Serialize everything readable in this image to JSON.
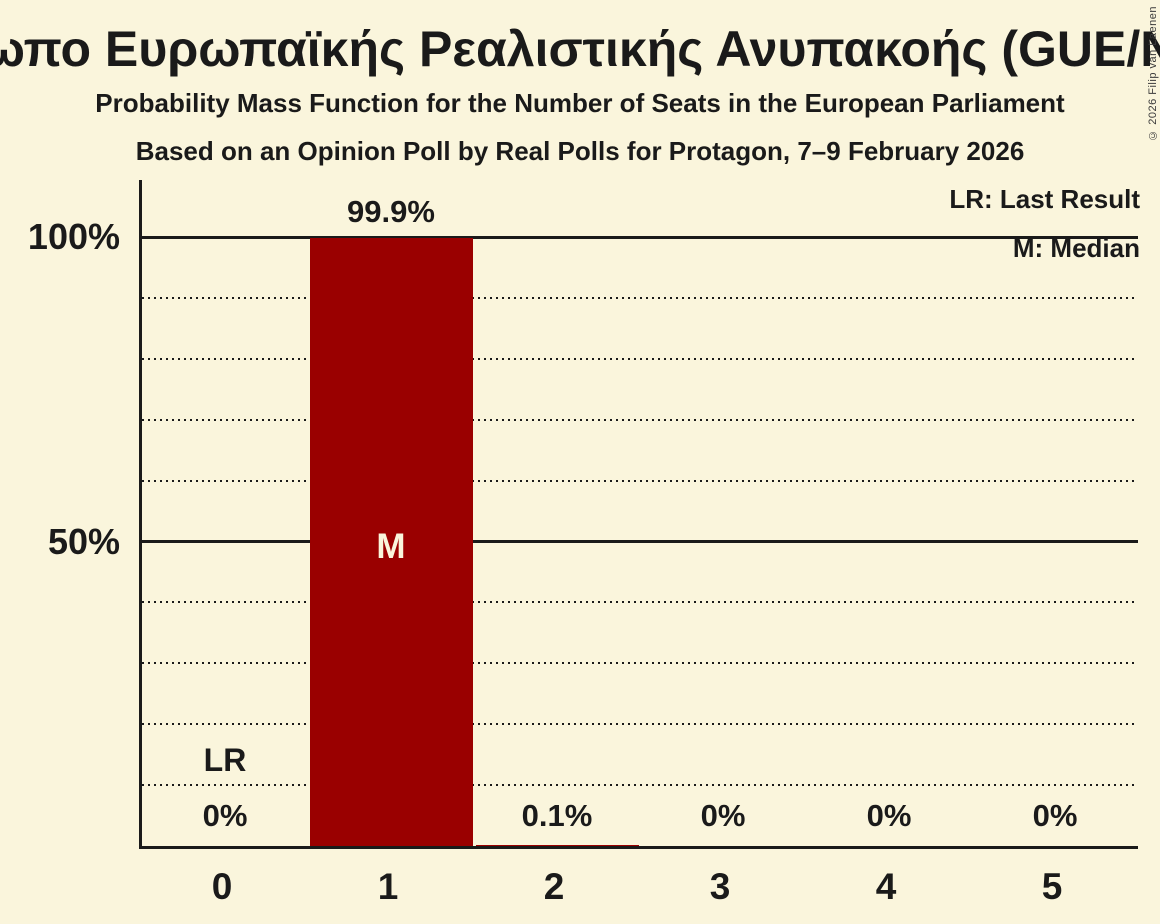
{
  "title": "Μέτωπο Ευρωπαϊκής Ρεαλιστικής Ανυπακοής (GUE/NGL)",
  "subtitle": "Probability Mass Function for the Number of Seats in the European Parliament",
  "source_line": "Based on an Opinion Poll by Real Polls for Protagon, 7–9 February 2026",
  "copyright": "© 2026 Filip van Laenen",
  "legend": {
    "last_result": "LR: Last Result",
    "median": "M: Median"
  },
  "colors": {
    "background": "#faf5dc",
    "bar": "#9a0000",
    "bar_label": "#faf5dc",
    "text": "#1a1a1a"
  },
  "chart_data": {
    "type": "bar",
    "title": "Μέτωπο Ευρωπαϊκής Ρεαλιστικής Ανυπακοής (GUE/NGL)",
    "subtitle": "Probability Mass Function for the Number of Seats in the European Parliament",
    "categories": [
      "0",
      "1",
      "2",
      "3",
      "4",
      "5"
    ],
    "values": [
      0,
      99.9,
      0.1,
      0,
      0,
      0
    ],
    "value_labels": [
      "0%",
      "99.9%",
      "0.1%",
      "0%",
      "0%",
      "0%"
    ],
    "xlabel": "",
    "ylabel": "",
    "ylim": [
      0,
      100
    ],
    "yticks": [
      {
        "value": 100,
        "label": "100%"
      },
      {
        "value": 50,
        "label": "50%"
      }
    ],
    "grid_step": 10,
    "grid": "dotted minor, solid major at 50% and 100%",
    "legend_position": "top-right",
    "median_seats": 1,
    "median_marker": "M",
    "last_result_seats": 0,
    "last_result_marker": "LR"
  }
}
